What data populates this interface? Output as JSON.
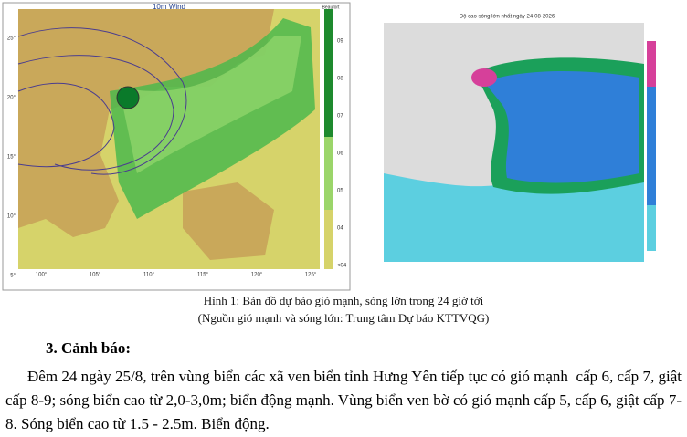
{
  "figure": {
    "left_map": {
      "title": "10m Wind",
      "scale_label": "Beaufort",
      "lon_labels": [
        "100°",
        "105°",
        "110°",
        "115°",
        "120°",
        "125°"
      ],
      "lat_labels": [
        "25°",
        "20°",
        "15°",
        "10°",
        "5°"
      ],
      "scale_ticks": [
        "09",
        "08",
        "07",
        "06",
        "05",
        "04",
        "<04"
      ]
    },
    "right_map": {
      "title": "Độ cao sóng lớn nhất ngày 24-08-2026"
    }
  },
  "caption": [
    "Hình 1: Bản đồ dự báo gió mạnh, sóng lớn trong 24 giờ tới",
    "(Nguồn gió mạnh và sóng lớn: Trung tâm Dự báo KTTVQG)"
  ],
  "section": {
    "heading": "3. Cảnh báo:",
    "body": "Đêm 24 ngày 25/8, trên vùng biển các xã ven biển tỉnh Hưng Yên tiếp tục có gió mạnh  cấp 6, cấp 7, giật cấp 8-9; sóng biển cao từ 2,0-3,0m; biển động mạnh. Vùng biển ven bờ có gió mạnh cấp 5, cấp 6, giật cấp 7-8. Sóng biển cao từ 1.5 - 2.5m. Biển động."
  }
}
